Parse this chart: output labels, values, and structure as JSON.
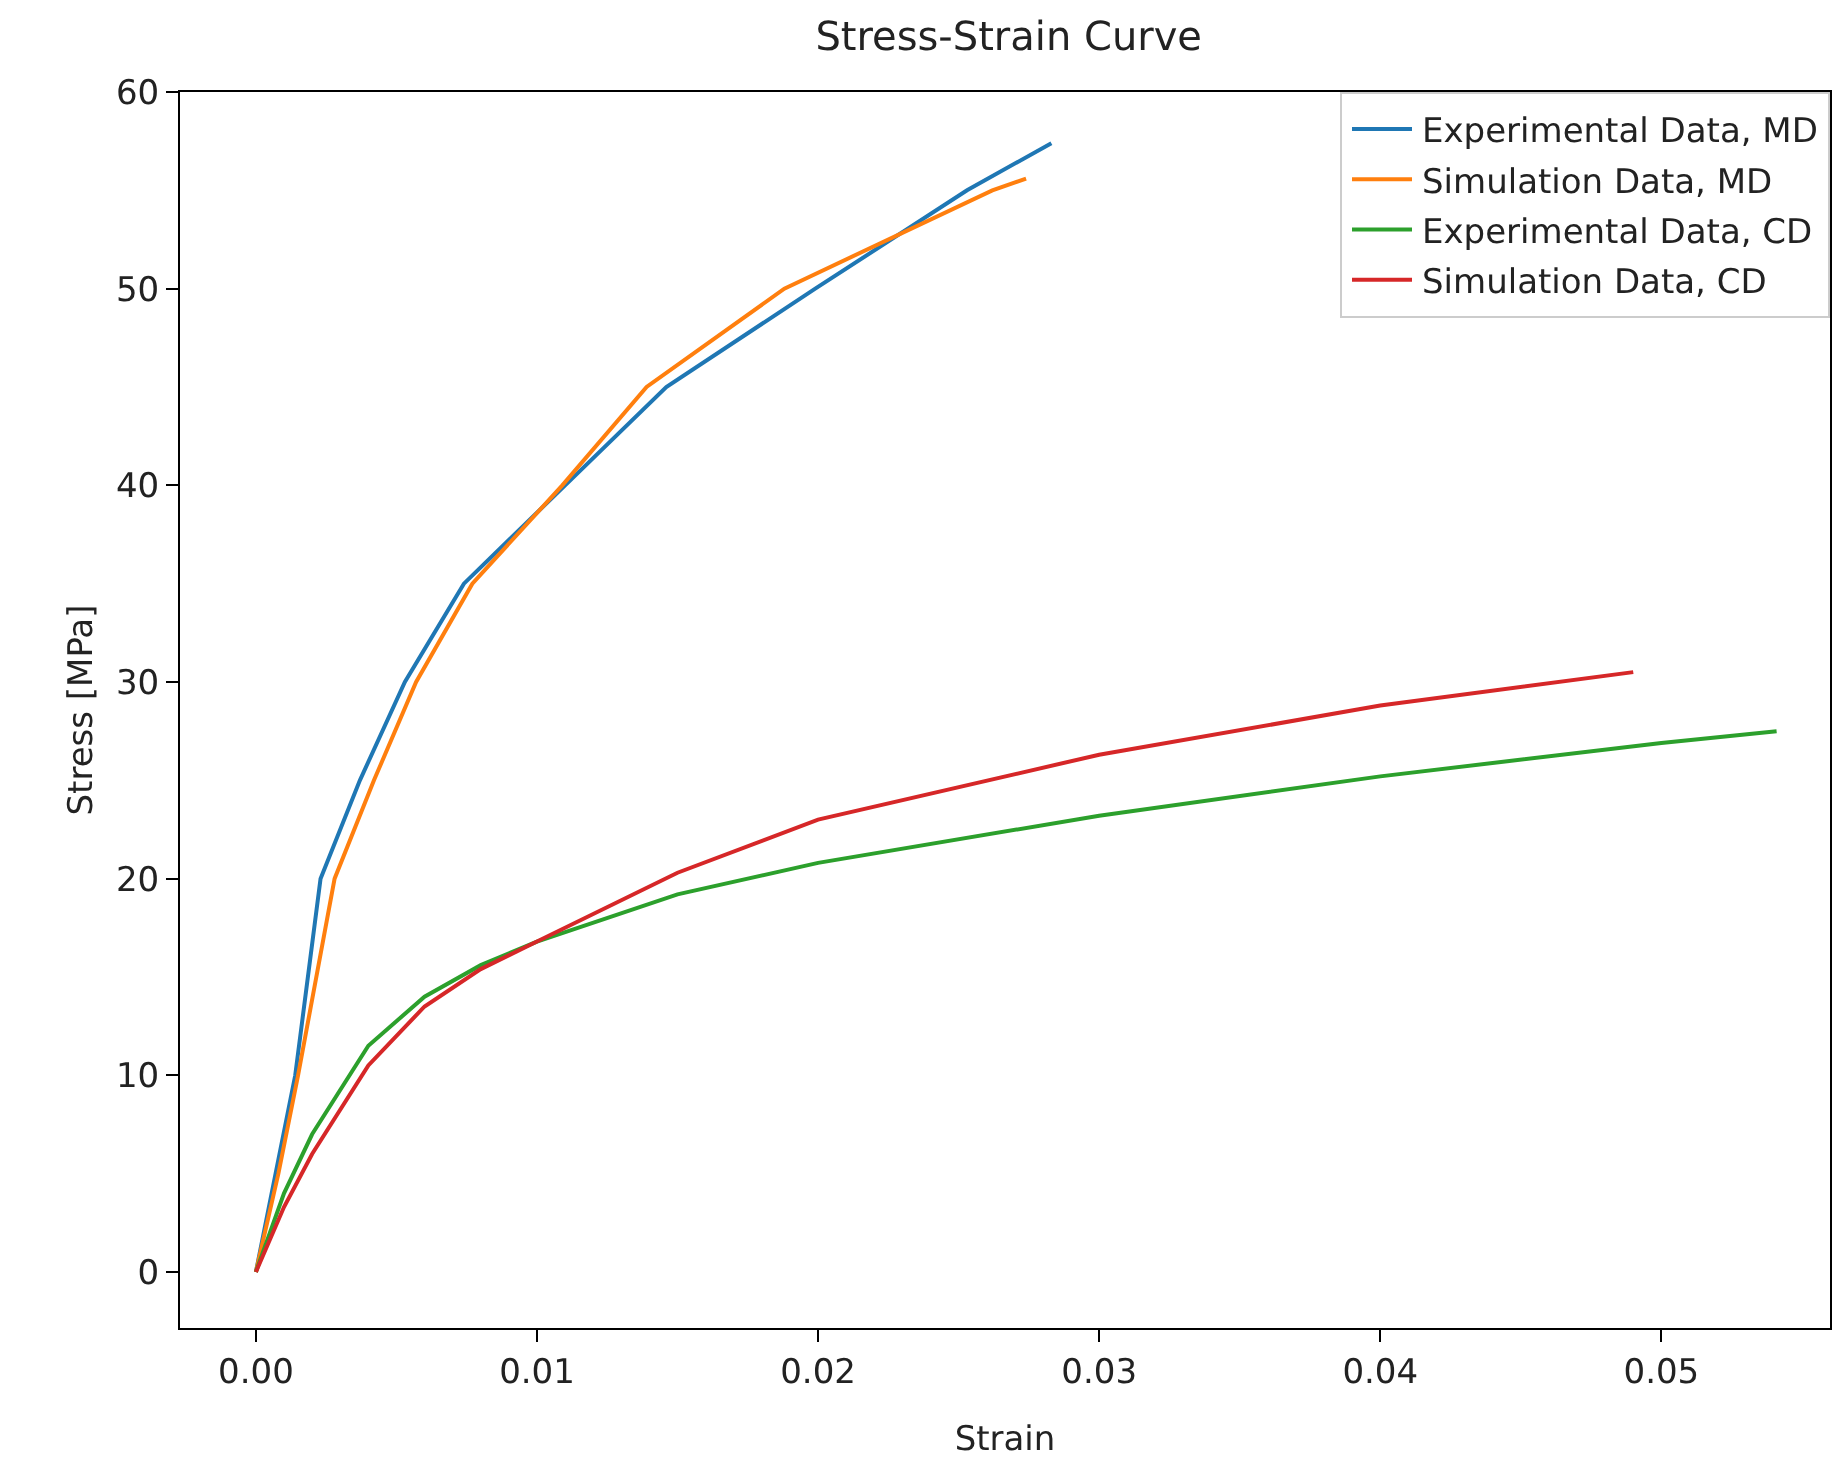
{
  "chart_data": {
    "type": "line",
    "title": "Stress-Strain Curve",
    "xlabel": "Strain",
    "ylabel": "Stress [MPa]",
    "xlim": [
      -0.0027,
      0.056
    ],
    "xticks": [
      {
        "value": 0,
        "label": "0.00"
      },
      {
        "value": 0.01,
        "label": "0.01"
      },
      {
        "value": 0.02,
        "label": "0.02"
      },
      {
        "value": 0.03,
        "label": "0.03"
      },
      {
        "value": 0.04,
        "label": "0.04"
      },
      {
        "value": 0.05,
        "label": "0.05"
      }
    ],
    "ylim": [
      -2.85,
      60
    ],
    "yticks": [
      0,
      10,
      20,
      30,
      40,
      50,
      60
    ],
    "grid": false,
    "legend": "top right",
    "marker": "none",
    "line_style": "solid",
    "series": [
      {
        "name": "Experimental Data, MD",
        "color": "#1f77b4",
        "x": [
          0,
          0.0007,
          0.0014,
          0.0023,
          0.0037,
          0.0053,
          0.0074,
          0.011,
          0.0146,
          0.0199,
          0.0253,
          0.0283
        ],
        "values": [
          0,
          5,
          10,
          20,
          25,
          30,
          35,
          40,
          45,
          50,
          55,
          57.4
        ]
      },
      {
        "name": "Simulation Data, MD",
        "color": "#ff7f0e",
        "x": [
          0,
          0.0008,
          0.0015,
          0.0028,
          0.0042,
          0.0057,
          0.0077,
          0.0109,
          0.0139,
          0.0188,
          0.0262,
          0.0274
        ],
        "values": [
          0,
          5,
          10,
          20,
          25,
          30,
          35,
          40,
          45,
          50,
          55,
          55.6
        ]
      },
      {
        "name": "Experimental Data, CD",
        "color": "#2ca02c",
        "x": [
          0,
          0.001,
          0.002,
          0.004,
          0.006,
          0.008,
          0.01,
          0.015,
          0.02,
          0.03,
          0.04,
          0.05,
          0.0541
        ],
        "values": [
          0,
          4,
          7,
          11.5,
          14,
          15.6,
          16.8,
          19.2,
          20.8,
          23.2,
          25.2,
          26.9,
          27.5
        ]
      },
      {
        "name": "Simulation Data, CD",
        "color": "#d62728",
        "x": [
          0,
          0.001,
          0.002,
          0.004,
          0.006,
          0.008,
          0.01,
          0.015,
          0.02,
          0.03,
          0.04,
          0.049
        ],
        "values": [
          0,
          3.3,
          6,
          10.5,
          13.5,
          15.4,
          16.8,
          20.3,
          23,
          26.3,
          28.8,
          30.5
        ]
      }
    ]
  }
}
